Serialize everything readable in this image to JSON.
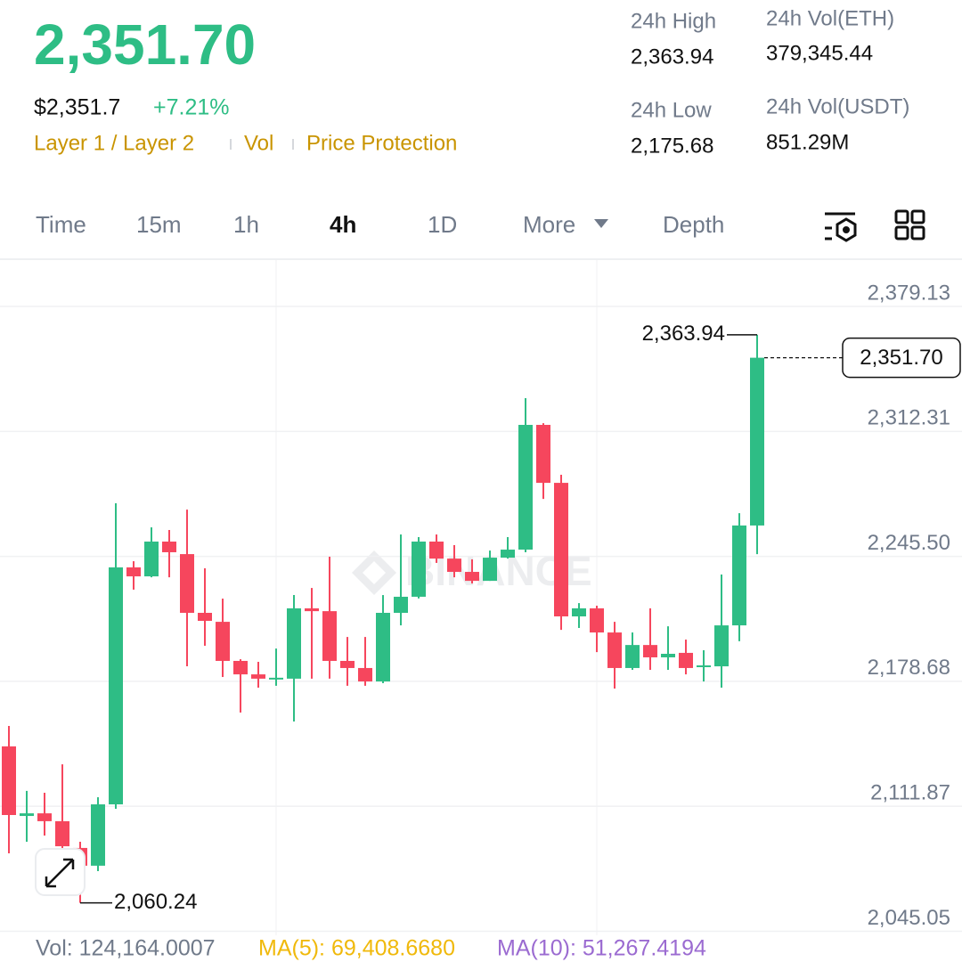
{
  "header": {
    "price": "2,351.70",
    "usd_price": "$2,351.7",
    "change": "+7.21%",
    "tags": [
      "Layer 1 / Layer 2",
      "Vol",
      "Price Protection"
    ],
    "stats": [
      {
        "label": "24h High",
        "value": "2,363.94"
      },
      {
        "label": "24h Vol(ETH)",
        "value": "379,345.44"
      },
      {
        "label": "24h Low",
        "value": "2,175.68"
      },
      {
        "label": "24h Vol(USDT)",
        "value": "851.29M"
      }
    ]
  },
  "tabs": [
    "Time",
    "15m",
    "1h",
    "4h",
    "1D",
    "More",
    "Depth"
  ],
  "chart_data": {
    "type": "candlestick",
    "open": [
      2143.9,
      2106.7,
      2108.1,
      2103.9,
      2089.6,
      2080.1,
      2112.9,
      2239.6,
      2234.8,
      2253.4,
      2246.7,
      2215.3,
      2210.5,
      2189.6,
      2182.4,
      2180.1,
      2180.1,
      2217.7,
      2216.2,
      2189.6,
      2185.8,
      2178.6,
      2215.3,
      2223.9,
      2253.4,
      2244.3,
      2237.2,
      2232.4,
      2244.8,
      2249.1,
      2315.8,
      2284.8,
      2213.4,
      2217.7,
      2204.8,
      2185.8,
      2198.1,
      2191.5,
      2193.9,
      2186.7,
      2186.7,
      2208.6,
      2262.0
    ],
    "high": [
      2154.8,
      2120.1,
      2119.1,
      2134.3,
      2092.9,
      2116.7,
      2273.9,
      2242.9,
      2261.0,
      2259.6,
      2270.5,
      2239.1,
      2222.9,
      2190.5,
      2189.1,
      2196.2,
      2224.8,
      2228.6,
      2245.3,
      2202.4,
      2202.4,
      2224.8,
      2257.2,
      2255.8,
      2257.2,
      2251.5,
      2243.9,
      2248.6,
      2255.8,
      2330.1,
      2316.7,
      2289.1,
      2220.5,
      2219.1,
      2210.5,
      2204.8,
      2217.7,
      2208.1,
      2201.0,
      2195.3,
      2235.8,
      2268.6,
      2363.94
    ],
    "low": [
      2086.7,
      2092.9,
      2096.2,
      2082.0,
      2060.24,
      2077.2,
      2110.5,
      2227.7,
      2234.3,
      2234.3,
      2186.7,
      2197.7,
      2181.0,
      2162.0,
      2175.3,
      2176.3,
      2157.2,
      2180.1,
      2180.1,
      2176.3,
      2176.3,
      2177.7,
      2208.6,
      2223.0,
      2242.0,
      2234.3,
      2231.0,
      2232.4,
      2244.3,
      2247.7,
      2276.2,
      2206.2,
      2207.2,
      2194.3,
      2174.8,
      2184.8,
      2184.8,
      2184.8,
      2182.4,
      2178.6,
      2175.3,
      2200.1,
      2246.7
    ],
    "close": [
      2107.2,
      2108.1,
      2103.9,
      2090.5,
      2080.1,
      2112.9,
      2239.6,
      2234.8,
      2253.4,
      2247.7,
      2215.3,
      2211.0,
      2189.6,
      2182.4,
      2180.1,
      2180.6,
      2217.7,
      2216.2,
      2189.6,
      2185.8,
      2178.6,
      2215.3,
      2223.9,
      2253.4,
      2244.3,
      2237.2,
      2232.4,
      2244.8,
      2249.1,
      2315.8,
      2284.8,
      2213.4,
      2217.7,
      2204.8,
      2185.8,
      2198.1,
      2191.5,
      2193.4,
      2185.8,
      2187.2,
      2208.6,
      2262.0,
      2351.7
    ],
    "up_color": "#2ebd85",
    "down_color": "#f6465d",
    "ylim": [
      2042.9,
      2403.9
    ],
    "yticks": [
      {
        "value": 2379.13,
        "label": "2,379.13"
      },
      {
        "value": 2312.31,
        "label": "2,312.31"
      },
      {
        "value": 2245.5,
        "label": "2,245.50"
      },
      {
        "value": 2178.68,
        "label": "2,178.68"
      },
      {
        "value": 2111.87,
        "label": "2,111.87"
      },
      {
        "value": 2045.05,
        "label": "2,045.05"
      }
    ],
    "grid": true,
    "annotations": [
      {
        "value": 2363.94,
        "label": "2,363.94"
      },
      {
        "value": 2060.24,
        "label": "2,060.24"
      }
    ],
    "last_price": {
      "value": 2351.7,
      "label": "2,351.70"
    },
    "watermark": "BINANCE"
  },
  "footer": {
    "vol": "Vol: 124,164.0007",
    "ma5": "MA(5): 69,408.6680",
    "ma10": "MA(10): 51,267.4194"
  }
}
